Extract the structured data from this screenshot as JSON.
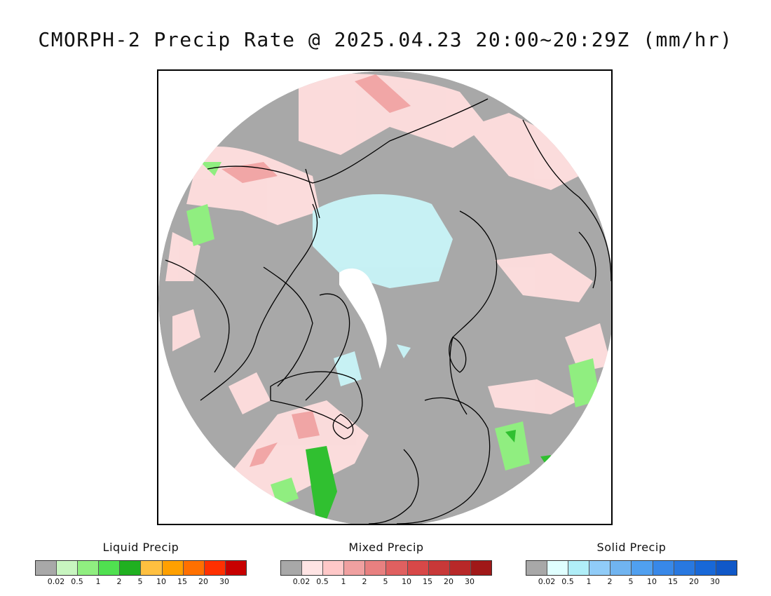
{
  "title": "CMORPH-2 Precip Rate @ 2025.04.23 20:00~20:29Z (mm/hr)",
  "map": {
    "projection": "north-polar-stereographic",
    "background_color": "#a8a8a8",
    "pole_mask_color": "#ffffff",
    "coastline_color": "#000000"
  },
  "legends": [
    {
      "title": "Liquid Precip",
      "colors": [
        "#a8a8a8",
        "#c8f5c0",
        "#90ee80",
        "#50e050",
        "#20b020",
        "#ffc040",
        "#ffa000",
        "#ff7000",
        "#ff3000",
        "#c80000"
      ],
      "ticks": [
        "0.02",
        "0.5",
        "1",
        "2",
        "5",
        "10",
        "15",
        "20",
        "30"
      ]
    },
    {
      "title": "Mixed Precip",
      "colors": [
        "#a8a8a8",
        "#ffe4e4",
        "#ffc8c8",
        "#f0a0a0",
        "#e88080",
        "#e06060",
        "#d84848",
        "#c83838",
        "#b82828",
        "#a01818"
      ],
      "ticks": [
        "0.02",
        "0.5",
        "1",
        "2",
        "5",
        "10",
        "15",
        "20",
        "30"
      ]
    },
    {
      "title": "Solid Precip",
      "colors": [
        "#a8a8a8",
        "#e0ffff",
        "#b0eef8",
        "#90ccf8",
        "#70b4f0",
        "#50a0f0",
        "#3888e8",
        "#2878e0",
        "#1868d8",
        "#1058c8"
      ],
      "ticks": [
        "0.02",
        "0.5",
        "1",
        "2",
        "5",
        "10",
        "15",
        "20",
        "30"
      ]
    }
  ]
}
